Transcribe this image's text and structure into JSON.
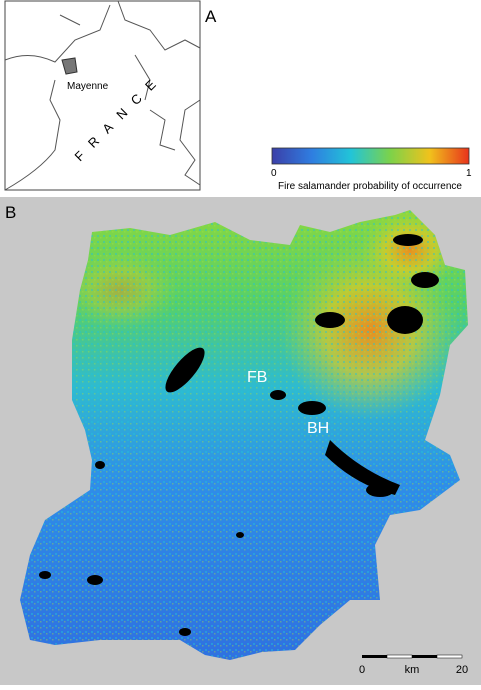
{
  "panel_a": {
    "label": "A",
    "region_label": "Mayenne",
    "country_label": "FRANCE",
    "legend": {
      "min_label": "0",
      "max_label": "1",
      "title": "Fire salamander probability of occurrence"
    }
  },
  "panel_b": {
    "label": "B",
    "site_labels": [
      "FB",
      "BH"
    ],
    "scale_bar": {
      "start_label": "0",
      "unit_label": "km",
      "end_label": "20"
    }
  }
}
